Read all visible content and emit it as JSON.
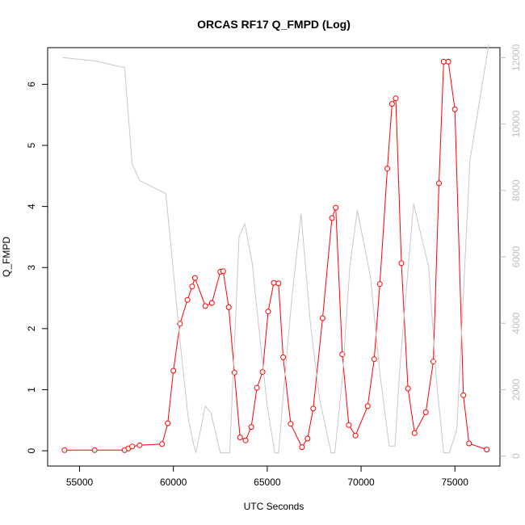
{
  "chart_data": {
    "type": "line",
    "title": "ORCAS RF17 Q_FMPD (Log)",
    "xlabel": "UTC Seconds",
    "ylabel": "Q_FMPD",
    "xlim": [
      53300,
      77400
    ],
    "ylim": [
      -0.25,
      6.6
    ],
    "y2lim": [
      -300,
      12300
    ],
    "x_ticks": [
      55000,
      60000,
      65000,
      70000,
      75000
    ],
    "y_ticks": [
      0,
      1,
      2,
      3,
      4,
      5,
      6
    ],
    "y2_ticks": [
      0,
      2000,
      4000,
      6000,
      8000,
      10000,
      12000
    ],
    "grid": false,
    "series": [
      {
        "axis": "left",
        "color": "#ff0000",
        "marker": "open-circle",
        "x": [
          54200,
          55800,
          57400,
          57600,
          57800,
          58200,
          59400,
          59700,
          60000,
          60350,
          60750,
          61000,
          61150,
          61700,
          62050,
          62500,
          62650,
          62950,
          63250,
          63550,
          63850,
          64150,
          64450,
          64750,
          65050,
          65350,
          65600,
          65850,
          66250,
          66850,
          67150,
          67450,
          67950,
          68450,
          68650,
          69000,
          69350,
          69700,
          70350,
          70700,
          71000,
          71400,
          71650,
          71850,
          72150,
          72500,
          72850,
          73450,
          73850,
          74150,
          74400,
          74650,
          75000,
          75450,
          75750,
          76700
        ],
        "values": [
          0.01,
          0.01,
          0.01,
          0.04,
          0.07,
          0.09,
          0.11,
          0.45,
          1.31,
          2.08,
          2.47,
          2.69,
          2.83,
          2.37,
          2.42,
          2.93,
          2.94,
          2.35,
          1.28,
          0.22,
          0.17,
          0.39,
          1.03,
          1.29,
          2.28,
          2.75,
          2.74,
          1.53,
          0.44,
          0.06,
          0.2,
          0.69,
          2.17,
          3.81,
          3.98,
          1.58,
          0.42,
          0.25,
          0.73,
          1.5,
          2.73,
          4.62,
          5.68,
          5.77,
          3.07,
          1.02,
          0.29,
          0.63,
          1.46,
          4.38,
          6.37,
          6.37,
          5.59,
          0.91,
          0.12,
          0.02
        ]
      },
      {
        "axis": "right",
        "color": "#c8c8c8",
        "marker": "none",
        "x": [
          54100,
          55800,
          57400,
          57800,
          58200,
          59600,
          60400,
          60800,
          61100,
          61200,
          61700,
          62000,
          62500,
          63000,
          63500,
          63800,
          64200,
          64600,
          65000,
          65400,
          65600,
          66000,
          66300,
          66800,
          67300,
          67800,
          68400,
          68600,
          69000,
          69400,
          69800,
          70500,
          71000,
          71500,
          71800,
          72100,
          72800,
          73600,
          74000,
          74400,
          74700,
          75100,
          75800,
          76800
        ],
        "values": [
          12000,
          11900,
          11700,
          8800,
          8300,
          7900,
          3200,
          1100,
          300,
          100,
          1500,
          1300,
          100,
          100,
          6600,
          7000,
          5800,
          3600,
          1500,
          100,
          100,
          2800,
          4700,
          7300,
          4000,
          1700,
          100,
          100,
          2300,
          5700,
          7400,
          5400,
          2500,
          300,
          300,
          2900,
          7600,
          5700,
          2400,
          100,
          100,
          800,
          8900,
          12400
        ]
      }
    ]
  }
}
